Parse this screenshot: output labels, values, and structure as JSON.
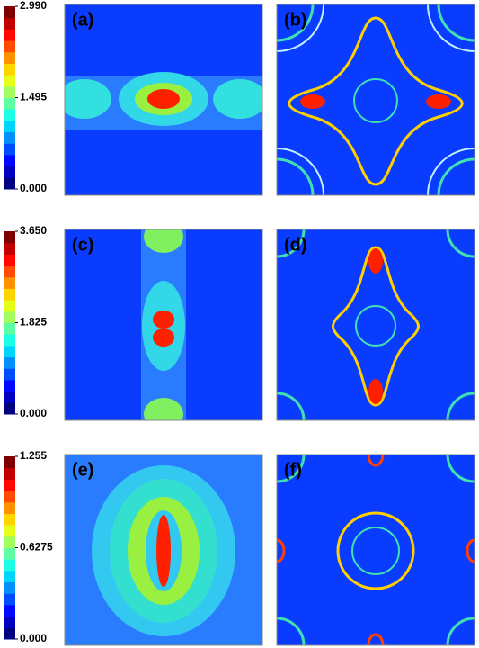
{
  "chart_data": [
    {
      "type": "heatmap",
      "labels": [
        "(a)",
        "(b)"
      ],
      "zlim": [
        0,
        2.99
      ],
      "zticks": [
        {
          "value": 0,
          "label": "0.000"
        },
        1.495,
        {
          "value": 2.99,
          "label": "2.990"
        }
      ]
    },
    {
      "type": "heatmap",
      "labels": [
        "(c)",
        "(d)"
      ],
      "zlim": [
        0,
        3.65
      ],
      "zticks": [
        {
          "value": 0,
          "label": "0.000"
        },
        1.825,
        {
          "value": 3.65,
          "label": "3.650"
        }
      ]
    },
    {
      "type": "heatmap",
      "labels": [
        "(e)",
        "(f)"
      ],
      "zlim": [
        0,
        1.255
      ],
      "zticks": [
        {
          "value": 0,
          "label": "0.000"
        },
        0.6275,
        1.255
      ]
    }
  ]
}
